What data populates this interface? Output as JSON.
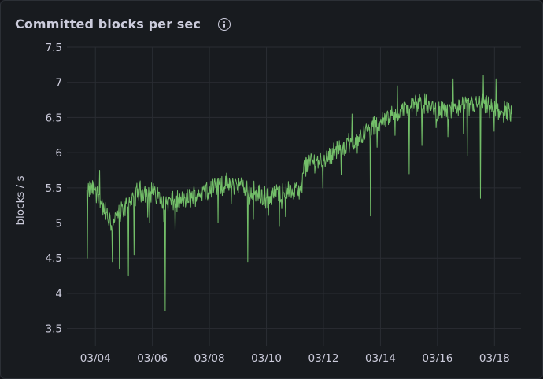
{
  "panel": {
    "title": "Committed blocks per sec",
    "info_icon": "info-icon"
  },
  "chart_data": {
    "type": "line",
    "title": "Committed blocks per sec",
    "xlabel": "",
    "ylabel": "blocks / s",
    "ylim": [
      3.25,
      7.5
    ],
    "y_ticks": [
      "3.5",
      "4",
      "4.5",
      "5",
      "5.5",
      "6",
      "6.5",
      "7",
      "7.5"
    ],
    "x_ticks": [
      "03/04",
      "03/06",
      "03/08",
      "03/10",
      "03/12",
      "03/14",
      "03/16",
      "03/18"
    ],
    "x_range_days": [
      "03/03",
      "03/19"
    ],
    "grid": true,
    "legend": "none",
    "series": [
      {
        "color": "#73bf69",
        "keypoints": [
          [
            3.7,
            5.45
          ],
          [
            4.0,
            5.5
          ],
          [
            4.5,
            5.0
          ],
          [
            5.0,
            5.2
          ],
          [
            5.5,
            5.45
          ],
          [
            6.0,
            5.45
          ],
          [
            6.5,
            5.3
          ],
          [
            7.0,
            5.3
          ],
          [
            7.5,
            5.4
          ],
          [
            8.0,
            5.5
          ],
          [
            8.5,
            5.55
          ],
          [
            9.0,
            5.55
          ],
          [
            9.5,
            5.45
          ],
          [
            10.0,
            5.35
          ],
          [
            10.5,
            5.45
          ],
          [
            11.2,
            5.45
          ],
          [
            11.35,
            5.85
          ],
          [
            12.0,
            5.9
          ],
          [
            12.5,
            6.05
          ],
          [
            13.0,
            6.15
          ],
          [
            13.5,
            6.3
          ],
          [
            14.0,
            6.45
          ],
          [
            14.5,
            6.55
          ],
          [
            15.0,
            6.65
          ],
          [
            15.5,
            6.7
          ],
          [
            16.0,
            6.6
          ],
          [
            16.5,
            6.6
          ],
          [
            17.0,
            6.65
          ],
          [
            17.5,
            6.7
          ],
          [
            18.0,
            6.6
          ],
          [
            18.6,
            6.6
          ]
        ],
        "noise": 0.13,
        "dips": [
          [
            3.72,
            4.5
          ],
          [
            4.6,
            4.45
          ],
          [
            4.85,
            4.35
          ],
          [
            5.15,
            4.25
          ],
          [
            5.35,
            4.55
          ],
          [
            5.9,
            5.0
          ],
          [
            6.45,
            3.75
          ],
          [
            6.8,
            4.9
          ],
          [
            8.3,
            5.0
          ],
          [
            9.35,
            4.45
          ],
          [
            9.55,
            5.05
          ],
          [
            10.45,
            4.95
          ],
          [
            13.65,
            5.1
          ],
          [
            15.0,
            5.7
          ],
          [
            15.45,
            6.1
          ],
          [
            17.05,
            5.95
          ],
          [
            17.5,
            5.35
          ]
        ],
        "spikes": [
          [
            4.15,
            5.75
          ],
          [
            13.0,
            6.55
          ],
          [
            14.6,
            6.95
          ],
          [
            16.55,
            7.05
          ],
          [
            17.6,
            7.1
          ],
          [
            18.05,
            7.05
          ]
        ]
      }
    ]
  }
}
